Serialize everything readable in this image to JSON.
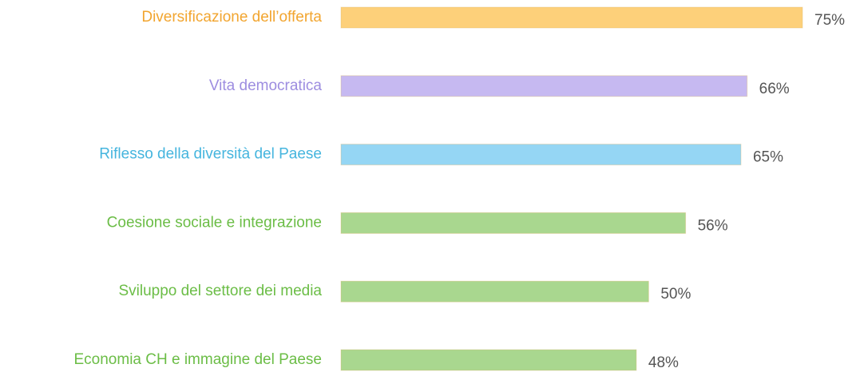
{
  "chart_data": {
    "type": "barh",
    "categories": [
      "Diversificazione dell’offerta",
      "Vita democratica",
      "Riflesso della diversità del Paese",
      "Coesione sociale e integrazione",
      "Sviluppo del settore dei media",
      "Economia CH e immagine del Paese"
    ],
    "values": [
      75,
      66,
      65,
      56,
      50,
      48
    ],
    "value_labels": [
      "75%",
      "66%",
      "65%",
      "56%",
      "50%",
      "48%"
    ],
    "colors": [
      "#fdd07a",
      "#c6b9f1",
      "#95d6f4",
      "#a9d78f",
      "#a9d78f",
      "#a9d78f"
    ],
    "label_colors": [
      "#f2a52f",
      "#9d8de0",
      "#45b5de",
      "#6bbd46",
      "#6bbd46",
      "#6bbd46"
    ]
  }
}
